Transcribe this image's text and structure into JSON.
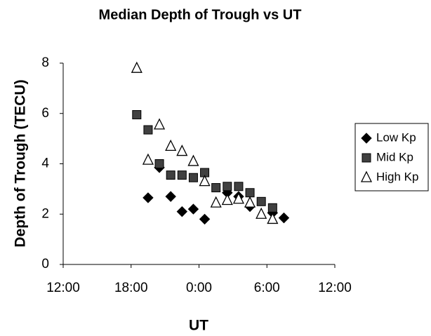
{
  "chart_data": {
    "type": "scatter",
    "title": "Median Depth of Trough vs UT",
    "x_label": "UT",
    "y_label": "Depth of Trough (TECU)",
    "xlim": [
      12,
      36
    ],
    "xticks": [
      {
        "value": 12,
        "label": "12:00"
      },
      {
        "value": 18,
        "label": "18:00"
      },
      {
        "value": 24,
        "label": "0:00"
      },
      {
        "value": 30,
        "label": "6:00"
      },
      {
        "value": 36,
        "label": "12:00"
      }
    ],
    "ylim": [
      0,
      8
    ],
    "yticks": [
      0,
      2,
      4,
      6,
      8
    ],
    "grid": false,
    "legend": "right",
    "series": [
      {
        "name": "Low Kp",
        "color": "#000000",
        "marker": "diamond",
        "x": [
          19.5,
          20.5,
          21.5,
          22.5,
          23.5,
          24.5,
          26.5,
          27.5,
          28.5,
          30.5,
          31.5
        ],
        "values": [
          2.65,
          3.85,
          2.7,
          2.1,
          2.2,
          1.8,
          2.85,
          2.7,
          2.3,
          2.05,
          1.85
        ]
      },
      {
        "name": "Mid Kp",
        "color": "#404040",
        "marker": "square",
        "x": [
          18.5,
          19.5,
          20.5,
          21.5,
          22.5,
          23.5,
          24.5,
          25.5,
          26.5,
          27.5,
          28.5,
          29.5,
          30.5
        ],
        "values": [
          5.95,
          5.35,
          4.0,
          3.55,
          3.55,
          3.45,
          3.65,
          3.05,
          3.1,
          3.1,
          2.85,
          2.5,
          2.25
        ]
      },
      {
        "name": "High Kp",
        "color": "#ffffff",
        "marker": "triangle",
        "x": [
          18.5,
          19.5,
          20.5,
          21.5,
          22.5,
          23.5,
          24.5,
          25.5,
          26.5,
          27.5,
          28.5,
          29.5,
          30.5
        ],
        "values": [
          7.8,
          4.15,
          5.55,
          4.7,
          4.5,
          4.1,
          3.3,
          2.45,
          2.55,
          2.6,
          2.45,
          2.0,
          1.8
        ]
      }
    ]
  }
}
